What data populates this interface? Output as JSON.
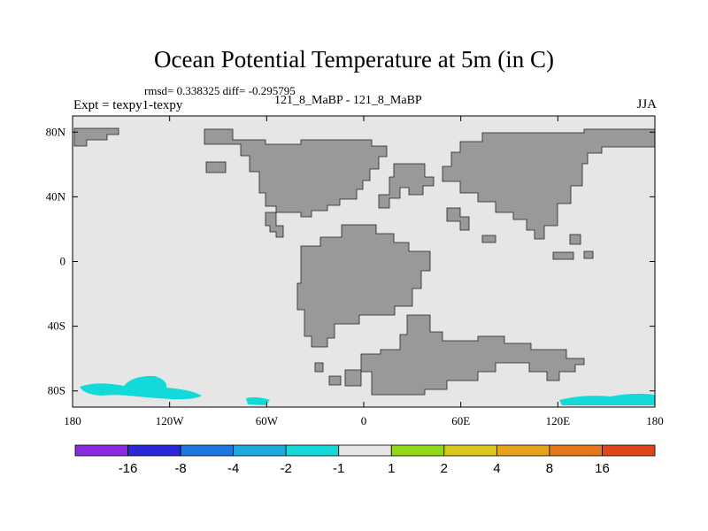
{
  "title": "Ocean Potential Temperature at 5m (in C)",
  "stats_line": "rmsd= 0.338325  diff= -0.295795",
  "experiment": "Expt = texpy1-texpy",
  "runs_label": "121_8_MaBP - 121_8_MaBP",
  "season": "JJA",
  "colors": {
    "ocean_background": "#e6e6e6",
    "land": "#999999",
    "anomaly_minus2_to_minus1": "#14d9d9"
  },
  "x_ticks": [
    "180",
    "120W",
    "60W",
    "0",
    "60E",
    "120E",
    "180"
  ],
  "y_ticks": [
    "80N",
    "40N",
    "0",
    "40S",
    "80S"
  ],
  "colorbar": {
    "colors": [
      "#8a2be2",
      "#2828d8",
      "#1a78e0",
      "#1aaae0",
      "#14d9d9",
      "#e6e6e6",
      "#8fd91a",
      "#d9c81a",
      "#e6a21a",
      "#e6781a",
      "#e0461a"
    ],
    "labels": [
      "-16",
      "-8",
      "-4",
      "-2",
      "-1",
      "1",
      "2",
      "4",
      "8",
      "16"
    ]
  },
  "chart_data": {
    "type": "heatmap",
    "title": "Ocean Potential Temperature at 5m (in C)",
    "x_range": [
      -180,
      180
    ],
    "y_range": [
      -90,
      90
    ],
    "x_ticks": [
      -180,
      -120,
      -60,
      0,
      60,
      120,
      180
    ],
    "y_ticks": [
      80,
      40,
      0,
      -40,
      -80
    ],
    "field_summary": "difference field nearly 0 (between -1 and 1) almost everywhere; small patches between -2 and -1 near 80S",
    "cool_patches_lon_range_deg": [
      [
        -170,
        -100
      ],
      [
        -60,
        -40
      ],
      [
        130,
        180
      ]
    ],
    "contour_levels": [
      -16,
      -8,
      -4,
      -2,
      -1,
      1,
      2,
      4,
      8,
      16
    ]
  }
}
